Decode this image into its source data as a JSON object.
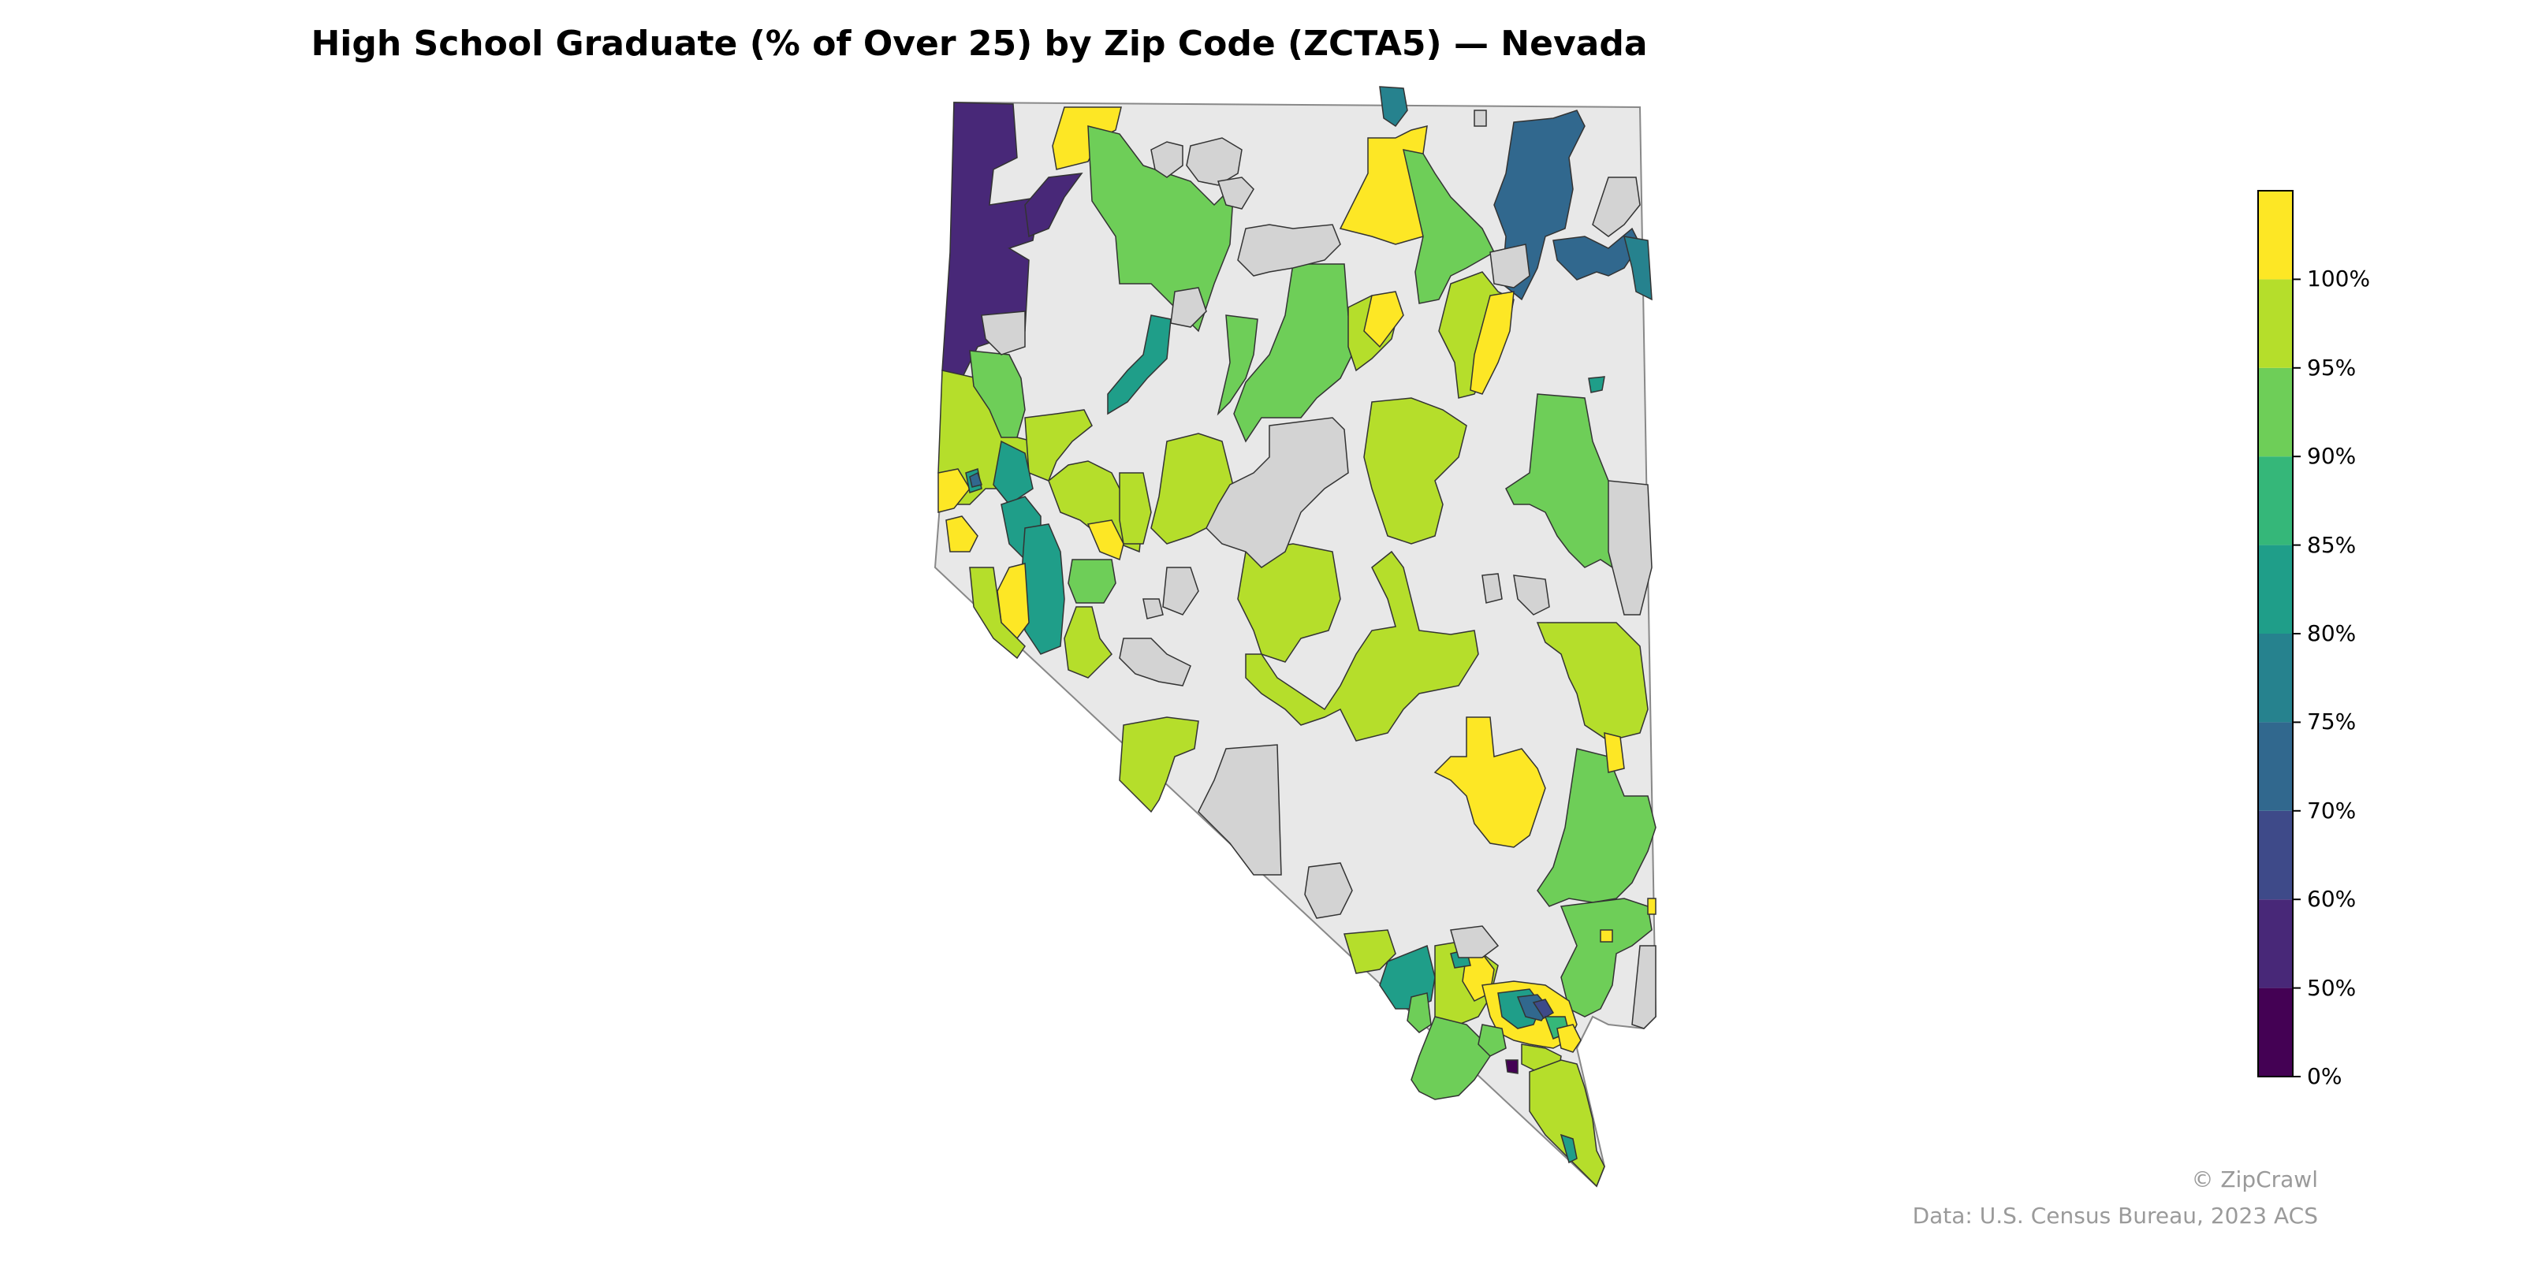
{
  "title": "High School Graduate (% of Over 25) by Zip Code (ZCTA5) — Nevada",
  "map": {
    "region": "Nevada",
    "geography": "ZCTA5",
    "no_data_color": "#d3d3d3",
    "state_fill_color": "#e8e8e8",
    "border_color": "#333333"
  },
  "legend": {
    "type": "colorbar",
    "placement": "right",
    "ticks": [
      "0%",
      "50%",
      "60%",
      "70%",
      "75%",
      "80%",
      "85%",
      "90%",
      "95%",
      "100%"
    ],
    "bins": [
      {
        "range": [
          0,
          50
        ],
        "color": "#440154"
      },
      {
        "range": [
          50,
          60
        ],
        "color": "#482878"
      },
      {
        "range": [
          60,
          70
        ],
        "color": "#3e4a89"
      },
      {
        "range": [
          70,
          75
        ],
        "color": "#31688e"
      },
      {
        "range": [
          75,
          80
        ],
        "color": "#26828e"
      },
      {
        "range": [
          80,
          85
        ],
        "color": "#1f9e89"
      },
      {
        "range": [
          85,
          90
        ],
        "color": "#35b779"
      },
      {
        "range": [
          90,
          95
        ],
        "color": "#6ece58"
      },
      {
        "range": [
          95,
          100
        ],
        "color": "#b5de2b"
      },
      {
        "range": [
          100,
          100
        ],
        "color": "#fde725"
      }
    ]
  },
  "footer": {
    "credit": "© ZipCrawl",
    "source": "Data: U.S. Census Bureau, 2023 ACS"
  }
}
